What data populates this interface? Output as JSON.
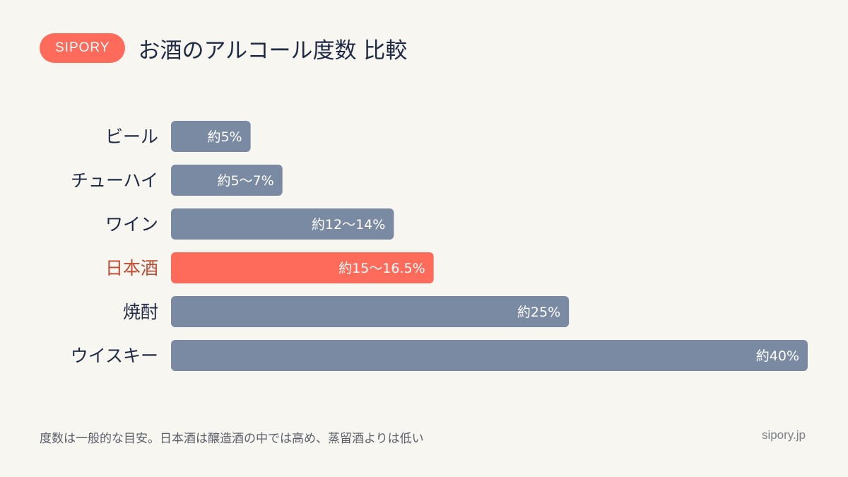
{
  "brand": {
    "label": "SIPORY"
  },
  "title": "お酒のアルコール度数 比較",
  "footnote": "度数は一般的な目安。日本酒は醸造酒の中では高め、蒸留酒よりは低い",
  "site": "sipory.jp",
  "colors": {
    "background": "#f8f6f1",
    "accent": "#fe6b5a",
    "accent_text": "#c14a30",
    "bar": "#7b8aa3",
    "text": "#1e2a44"
  },
  "chart_data": {
    "type": "bar",
    "orientation": "horizontal",
    "title": "お酒のアルコール度数 比較",
    "xlabel": "",
    "ylabel": "",
    "xlim": [
      0,
      40
    ],
    "grid": false,
    "categories": [
      "ビール",
      "チューハイ",
      "ワイン",
      "日本酒",
      "焼酎",
      "ウイスキー"
    ],
    "values": [
      5,
      7,
      14,
      16.5,
      25,
      40
    ],
    "data_labels": [
      "約5%",
      "約5〜7%",
      "約12〜14%",
      "約15〜16.5%",
      "約25%",
      "約40%"
    ],
    "highlight": "日本酒"
  }
}
